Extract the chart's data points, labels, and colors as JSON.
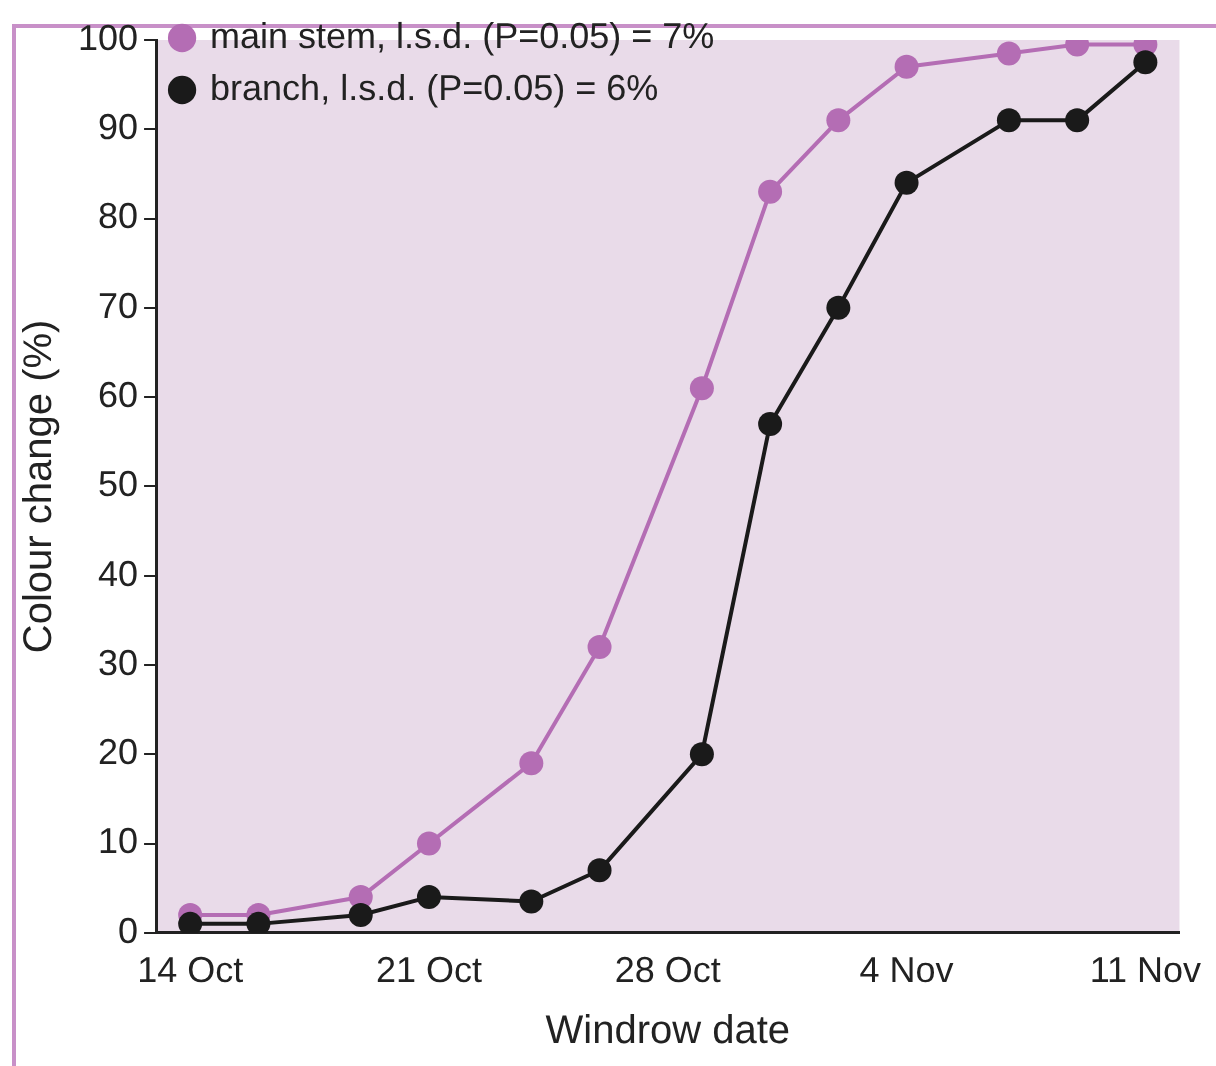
{
  "chart_data": {
    "type": "line",
    "xlabel": "Windrow date",
    "ylabel": "Colour change (%)",
    "x": [
      "--10-14",
      "--10-16",
      "--10-19",
      "--10-21",
      "--10-24",
      "--10-26",
      "--10-29",
      "--10-31",
      "--11-02",
      "--11-04",
      "--11-07",
      "--11-09",
      "--11-11"
    ],
    "series": [
      {
        "name": "main stem, l.s.d. (P=0.05) = 7%",
        "color": "#b46db4",
        "values": [
          2,
          2,
          4,
          10,
          19,
          32,
          61,
          83,
          91,
          97,
          98.5,
          99.5,
          99.5
        ]
      },
      {
        "name": "branch, l.s.d. (P=0.05) = 6%",
        "color": "#1a1a1a",
        "values": [
          1,
          1,
          2,
          4,
          3.5,
          7,
          20,
          57,
          70,
          84,
          91,
          91,
          97.5
        ]
      }
    ],
    "xlim": [
      "--10-13",
      "--11-12"
    ],
    "xticks": [
      {
        "value": "--10-14",
        "label": "14 Oct"
      },
      {
        "value": "--10-21",
        "label": "21 Oct"
      },
      {
        "value": "--10-28",
        "label": "28 Oct"
      },
      {
        "value": "--11-04",
        "label": "4 Nov"
      },
      {
        "value": "--11-11",
        "label": "11 Nov"
      }
    ],
    "ylim": [
      0,
      100
    ],
    "yticks": [
      0,
      10,
      20,
      30,
      40,
      50,
      60,
      70,
      80,
      90,
      100
    ],
    "grid": false,
    "legend": "top left",
    "marker": "circle",
    "line_style": "solid"
  }
}
